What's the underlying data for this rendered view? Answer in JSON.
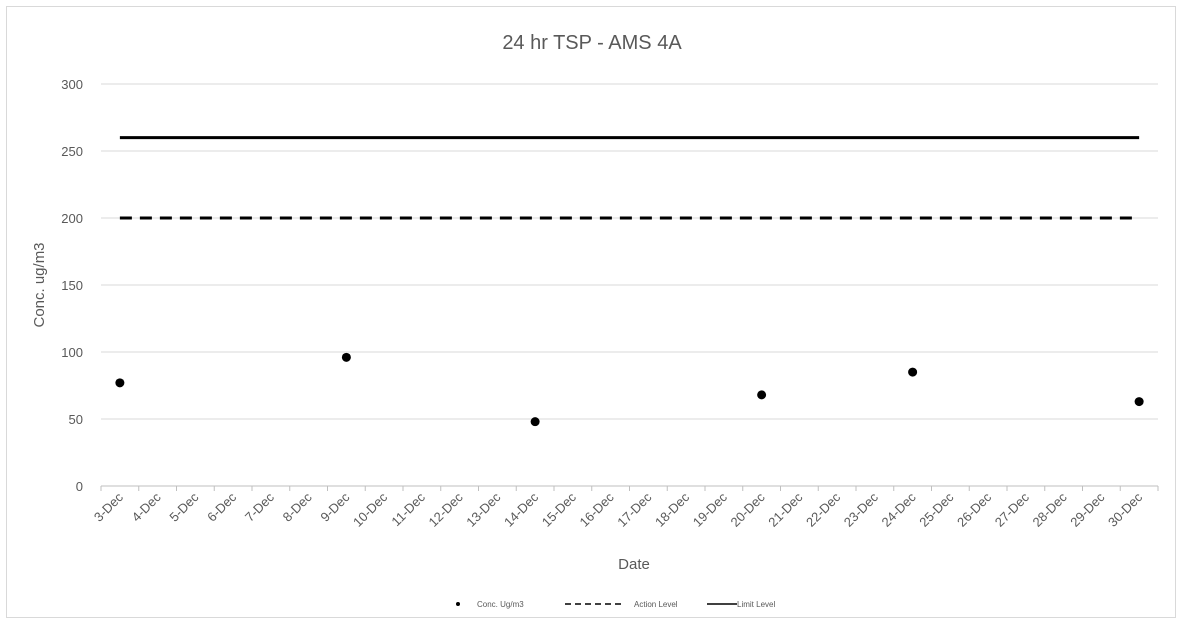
{
  "chart_data": {
    "type": "scatter",
    "title": "24 hr TSP - AMS 4A",
    "xlabel": "Date",
    "ylabel": "Conc. ug/m3",
    "ylim": [
      0,
      300
    ],
    "yticks": [
      0,
      50,
      100,
      150,
      200,
      250,
      300
    ],
    "grid": true,
    "legend_position": "bottom",
    "categories": [
      "3-Dec",
      "4-Dec",
      "5-Dec",
      "6-Dec",
      "7-Dec",
      "8-Dec",
      "9-Dec",
      "10-Dec",
      "11-Dec",
      "12-Dec",
      "13-Dec",
      "14-Dec",
      "15-Dec",
      "16-Dec",
      "17-Dec",
      "18-Dec",
      "19-Dec",
      "20-Dec",
      "21-Dec",
      "22-Dec",
      "23-Dec",
      "24-Dec",
      "25-Dec",
      "26-Dec",
      "27-Dec",
      "28-Dec",
      "29-Dec",
      "30-Dec"
    ],
    "series": [
      {
        "name": "Conc. Ug/m3",
        "kind": "marker",
        "color": "#000000",
        "points": [
          {
            "x": "3-Dec",
            "y": 77
          },
          {
            "x": "9-Dec",
            "y": 96
          },
          {
            "x": "14-Dec",
            "y": 48
          },
          {
            "x": "20-Dec",
            "y": 68
          },
          {
            "x": "24-Dec",
            "y": 85
          },
          {
            "x": "30-Dec",
            "y": 63
          }
        ]
      },
      {
        "name": "Action Level",
        "kind": "dashed-line",
        "color": "#000000",
        "value": 200
      },
      {
        "name": "Limit Level",
        "kind": "solid-line",
        "color": "#000000",
        "value": 260
      }
    ]
  }
}
